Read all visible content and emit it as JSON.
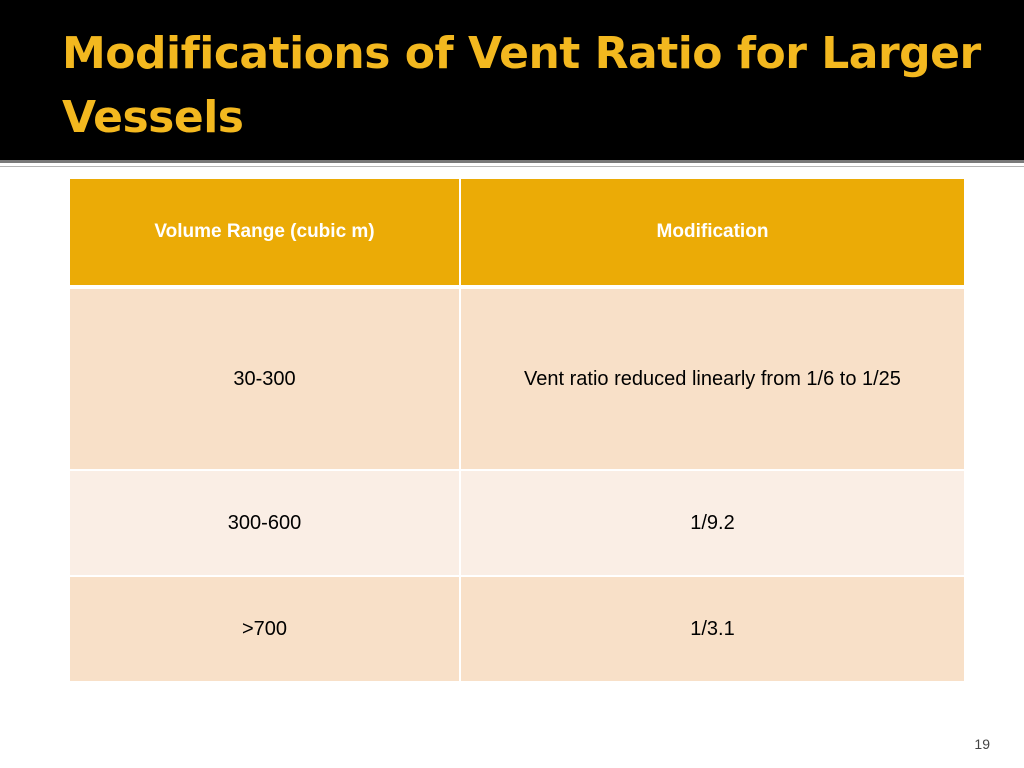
{
  "slide": {
    "title": "Modifications of Vent Ratio for Larger Vessels",
    "page_number": "19"
  },
  "table": {
    "headers": [
      "Volume Range (cubic m)",
      "Modification"
    ],
    "rows": [
      [
        "30-300",
        "Vent ratio reduced linearly from 1/6 to 1/25"
      ],
      [
        "300-600",
        "1/9.2"
      ],
      [
        ">700",
        "1/3.1"
      ]
    ]
  },
  "colors": {
    "title_bar": "#000000",
    "title_text": "#f3b81f",
    "header_fill": "#ebab06",
    "row_fill_dark": "#f8e0c8",
    "row_fill_light": "#faeee5"
  }
}
